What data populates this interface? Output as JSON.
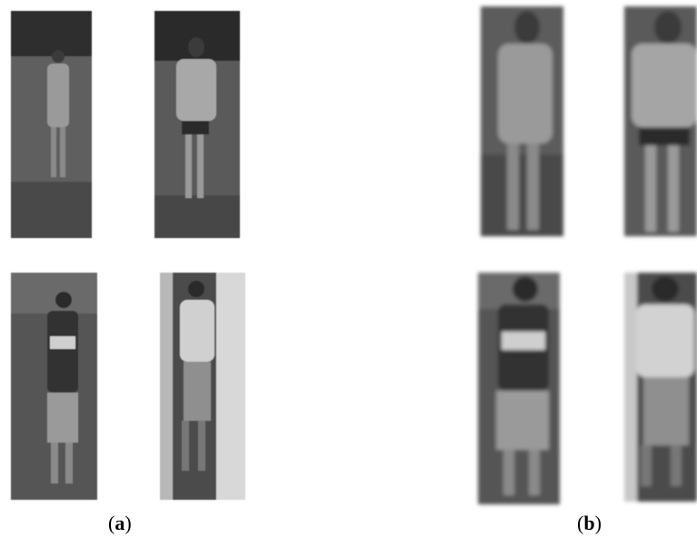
{
  "panels": [
    {
      "open": "(",
      "letter": "a",
      "close": ")"
    },
    {
      "open": "(",
      "letter": "b",
      "close": ")"
    }
  ]
}
